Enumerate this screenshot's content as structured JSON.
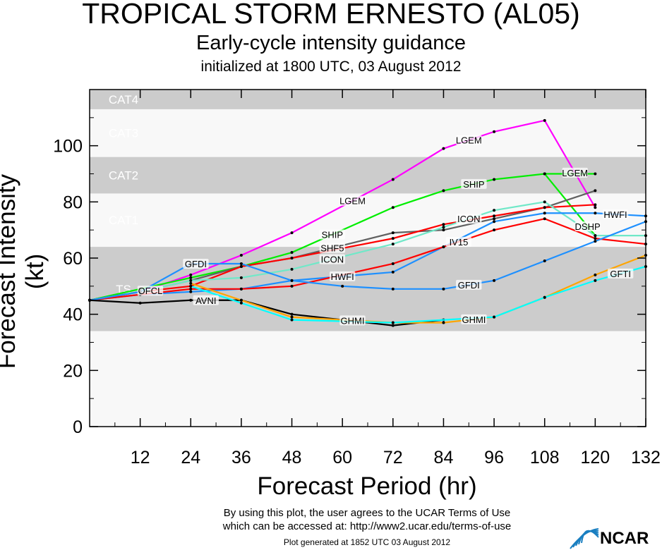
{
  "chart_data": {
    "type": "line",
    "title": "TROPICAL STORM ERNESTO (AL05)",
    "subtitle": "Early-cycle intensity guidance",
    "init_text": "initialized at 1800 UTC, 03 August 2012",
    "xlabel": "Forecast Period (hr)",
    "ylabel": "Forecast Intensity (kt)",
    "xlim": [
      0,
      132
    ],
    "ylim": [
      0,
      120
    ],
    "xticks": [
      12,
      24,
      36,
      48,
      60,
      72,
      84,
      96,
      108,
      120,
      132
    ],
    "yticks": [
      0,
      20,
      40,
      60,
      80,
      100
    ],
    "bands": [
      {
        "name": "TS",
        "range": [
          34,
          64
        ],
        "color": "#cccccc"
      },
      {
        "name": "CAT1",
        "range": [
          64,
          83
        ],
        "color": "#f8f8f8"
      },
      {
        "name": "CAT2",
        "range": [
          83,
          96
        ],
        "color": "#cccccc"
      },
      {
        "name": "CAT3",
        "range": [
          96,
          113
        ],
        "color": "#f8f8f8"
      },
      {
        "name": "CAT4",
        "range": [
          113,
          120
        ],
        "color": "#cccccc"
      }
    ],
    "series": [
      {
        "name": "LGEM",
        "color": "#ff00ff",
        "x": [
          0,
          12,
          24,
          36,
          48,
          72,
          84,
          96,
          108,
          120
        ],
        "y": [
          45,
          48,
          54,
          61,
          69,
          88,
          99,
          105,
          109,
          78
        ],
        "label_at": [
          4.6,
          6.5,
          8.6
        ]
      },
      {
        "name": "SHIP",
        "color": "#00ee00",
        "x": [
          0,
          12,
          24,
          36,
          48,
          72,
          84,
          96,
          108,
          120
        ],
        "y": [
          45,
          49,
          53,
          57,
          62,
          78,
          84,
          88,
          90,
          90
        ],
        "label_at": [
          4.4,
          6.6
        ]
      },
      {
        "name": "DSHP",
        "color": "#00ee00",
        "x": [
          108,
          120
        ],
        "y": [
          90,
          68
        ],
        "label_at": [
          0.85
        ]
      },
      {
        "name": "SHF5",
        "color": "#606060",
        "x": [
          0,
          12,
          24,
          36,
          48,
          72,
          84,
          96,
          108,
          120
        ],
        "y": [
          45,
          48,
          52,
          57,
          60,
          69,
          70,
          74,
          78,
          84
        ],
        "label_at": [
          4.4
        ]
      },
      {
        "name": "OFCL",
        "color": "#ff0000",
        "x": [
          0,
          12,
          24,
          36,
          48,
          72,
          84,
          96,
          108,
          120
        ],
        "y": [
          45,
          48,
          50,
          57,
          60,
          67,
          72,
          75,
          78,
          79
        ],
        "label_at": [
          4.4
        ]
      },
      {
        "name": "ICON",
        "color": "#70e8c8",
        "x": [
          0,
          12,
          24,
          36,
          48,
          72,
          84,
          96,
          108,
          120,
          132
        ],
        "y": [
          45,
          48,
          52,
          53,
          56,
          65,
          71,
          77,
          80,
          68,
          68
        ],
        "label_at": [
          4.4,
          6.5,
          8.9
        ]
      },
      {
        "name": "HWFI",
        "color": "#1e90ff",
        "x": [
          0,
          12,
          24,
          36,
          48,
          72,
          84,
          96,
          108,
          120,
          132
        ],
        "y": [
          45,
          47,
          48,
          49,
          52,
          55,
          64,
          73,
          76,
          76,
          75
        ],
        "label_at": [
          4.5,
          6.8,
          9.4
        ]
      },
      {
        "name": "IV15",
        "color": "#ff0000",
        "x": [
          0,
          12,
          24,
          36,
          48,
          72,
          84,
          96,
          108,
          120,
          132
        ],
        "y": [
          45,
          47,
          49,
          49,
          50,
          58,
          64,
          70,
          74,
          67,
          65
        ],
        "label_at": [
          4.3,
          6.3
        ]
      },
      {
        "name": "GFDI",
        "color": "#1e90ff",
        "x": [
          0,
          12,
          24,
          36,
          48,
          60,
          72,
          84,
          96,
          108,
          120,
          132
        ],
        "y": [
          45,
          48,
          58,
          58,
          52,
          50,
          49,
          49,
          52,
          59,
          66,
          73
        ],
        "label_at": [
          2.1,
          4.6,
          7.5
        ]
      },
      {
        "name": "AVNI",
        "color": "#000000",
        "x": [
          0,
          12,
          24,
          36,
          48,
          72,
          84
        ],
        "y": [
          45,
          44,
          45,
          45,
          40,
          36,
          38
        ],
        "label_at": [
          2.3,
          4.5
        ]
      },
      {
        "name": "GHMI",
        "color": "#ffa500",
        "x": [
          24,
          36,
          48,
          72,
          84,
          96,
          108,
          120,
          132
        ],
        "y": [
          51,
          45,
          39,
          37,
          37,
          39,
          46,
          54,
          61
        ],
        "label_at": [
          2.6,
          4.6,
          7.5
        ]
      },
      {
        "name": "GFTI",
        "color": "#00ffff",
        "x": [
          24,
          36,
          48,
          72,
          96,
          108,
          120,
          132
        ],
        "y": [
          50,
          44,
          38,
          37,
          39,
          46,
          52,
          57
        ],
        "label_at": [
          2.5,
          6.5
        ]
      }
    ]
  },
  "footer": {
    "terms_line1": "By using this plot, the user agrees to the UCAR Terms of Use",
    "terms_line2": "which can be accessed at: http://www2.ucar.edu/terms-of-use",
    "generated": "Plot generated at 1852 UTC   03 August 2012",
    "logo": "NCAR"
  }
}
